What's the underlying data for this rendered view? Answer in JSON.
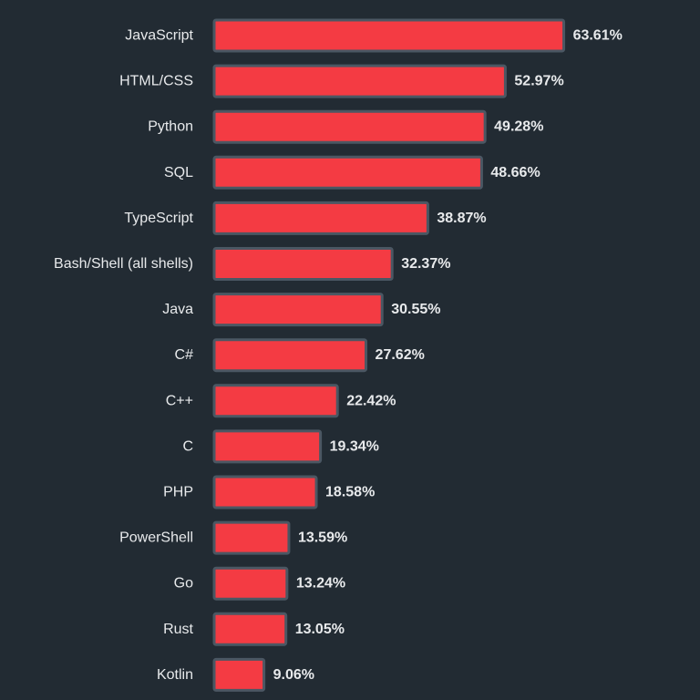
{
  "colors": {
    "background": "#222b33",
    "bar_fill": "#f43b43",
    "bar_stroke": "#4b5763",
    "text": "#e8eaec"
  },
  "chart_data": {
    "type": "bar",
    "orientation": "horizontal",
    "categories": [
      "JavaScript",
      "HTML/CSS",
      "Python",
      "SQL",
      "TypeScript",
      "Bash/Shell (all shells)",
      "Java",
      "C#",
      "C++",
      "C",
      "PHP",
      "PowerShell",
      "Go",
      "Rust",
      "Kotlin"
    ],
    "values": [
      63.61,
      52.97,
      49.28,
      48.66,
      38.87,
      32.37,
      30.55,
      27.62,
      22.42,
      19.34,
      18.58,
      13.59,
      13.24,
      13.05,
      9.06
    ],
    "value_labels": [
      "63.61%",
      "52.97%",
      "49.28%",
      "48.66%",
      "38.87%",
      "32.37%",
      "30.55%",
      "27.62%",
      "22.42%",
      "19.34%",
      "18.58%",
      "13.59%",
      "13.24%",
      "13.05%",
      "9.06%"
    ],
    "title": "",
    "xlabel": "",
    "ylabel": "",
    "grid": false,
    "legend": "none"
  }
}
